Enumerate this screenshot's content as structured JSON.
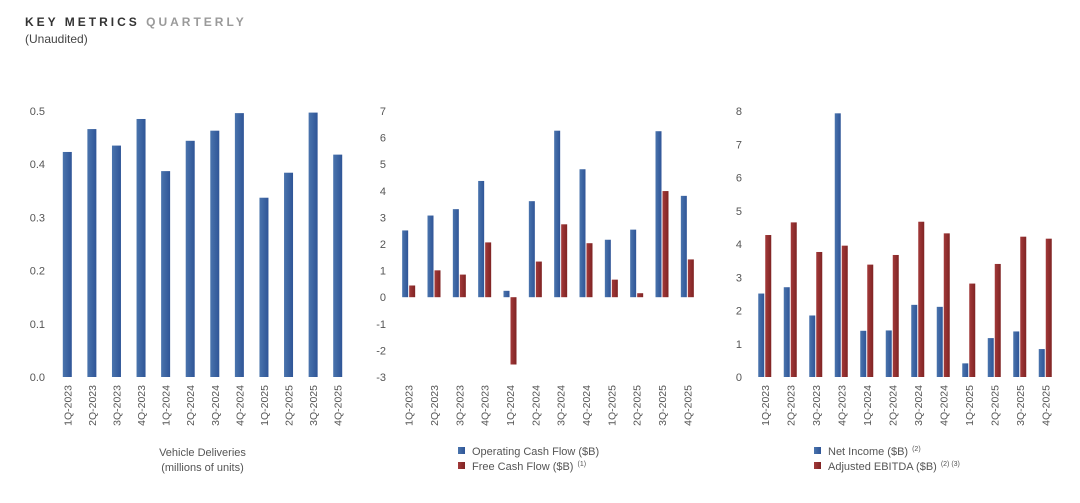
{
  "header": {
    "title_part1": "KEY METRICS",
    "title_part2": "QUARTERLY",
    "subtitle": "(Unaudited)"
  },
  "colors": {
    "blue": "#2f5597",
    "blue_light": "#4a74ad",
    "red": "#a33a3a",
    "red_dark": "#7f2323"
  },
  "chart_data": [
    {
      "type": "bar",
      "categories": [
        "1Q-2023",
        "2Q-2023",
        "3Q-2023",
        "4Q-2023",
        "1Q-2024",
        "2Q-2024",
        "3Q-2024",
        "4Q-2024",
        "1Q-2025",
        "2Q-2025",
        "3Q-2025",
        "4Q-2025"
      ],
      "series": [
        {
          "values": [
            0.423,
            0.466,
            0.435,
            0.485,
            0.387,
            0.444,
            0.463,
            0.496,
            0.337,
            0.384,
            0.497,
            0.418
          ]
        }
      ],
      "yticks": [
        "0.0",
        "0.1",
        "0.2",
        "0.3",
        "0.4",
        "0.5"
      ],
      "ylim": [
        0,
        0.5
      ],
      "caption": [
        "Vehicle Deliveries",
        "(millions of units)"
      ],
      "legend": []
    },
    {
      "type": "bar",
      "categories": [
        "1Q-2023",
        "2Q-2023",
        "3Q-2023",
        "4Q-2023",
        "1Q-2024",
        "2Q-2024",
        "3Q-2024",
        "4Q-2024",
        "1Q-2025",
        "2Q-2025",
        "3Q-2025",
        "4Q-2025"
      ],
      "series": [
        {
          "name": "Operating Cash Flow ($B)",
          "values": [
            2.51,
            3.07,
            3.31,
            4.37,
            0.24,
            3.61,
            6.26,
            4.81,
            2.16,
            2.54,
            6.24,
            3.81
          ]
        },
        {
          "name": "Free Cash Flow ($B)",
          "sup": "(1)",
          "values": [
            0.44,
            1.01,
            0.85,
            2.06,
            -2.53,
            1.34,
            2.74,
            2.03,
            0.66,
            0.15,
            3.99,
            1.42
          ]
        }
      ],
      "yticks": [
        "-3",
        "-2",
        "-1",
        "0",
        "1",
        "2",
        "3",
        "4",
        "5",
        "6",
        "7"
      ],
      "ylim": [
        -3,
        7
      ],
      "caption": [],
      "legend_position": "bottom"
    },
    {
      "type": "bar",
      "categories": [
        "1Q-2023",
        "2Q-2023",
        "3Q-2023",
        "4Q-2023",
        "1Q-2024",
        "2Q-2024",
        "3Q-2024",
        "4Q-2024",
        "1Q-2025",
        "2Q-2025",
        "3Q-2025",
        "4Q-2025"
      ],
      "series": [
        {
          "name": "Net Income ($B)",
          "sup": "(2)",
          "values": [
            2.51,
            2.7,
            1.85,
            7.93,
            1.39,
            1.4,
            2.17,
            2.11,
            0.41,
            1.17,
            1.37,
            0.84
          ]
        },
        {
          "name": "Adjusted EBITDA ($B)",
          "sup": "(2) (3)",
          "values": [
            4.27,
            4.65,
            3.76,
            3.95,
            3.38,
            3.67,
            4.67,
            4.32,
            2.81,
            3.4,
            4.22,
            4.16
          ]
        }
      ],
      "yticks": [
        "0",
        "1",
        "2",
        "3",
        "4",
        "5",
        "6",
        "7",
        "8"
      ],
      "ylim": [
        0,
        8
      ],
      "caption": [],
      "legend_position": "bottom"
    }
  ]
}
